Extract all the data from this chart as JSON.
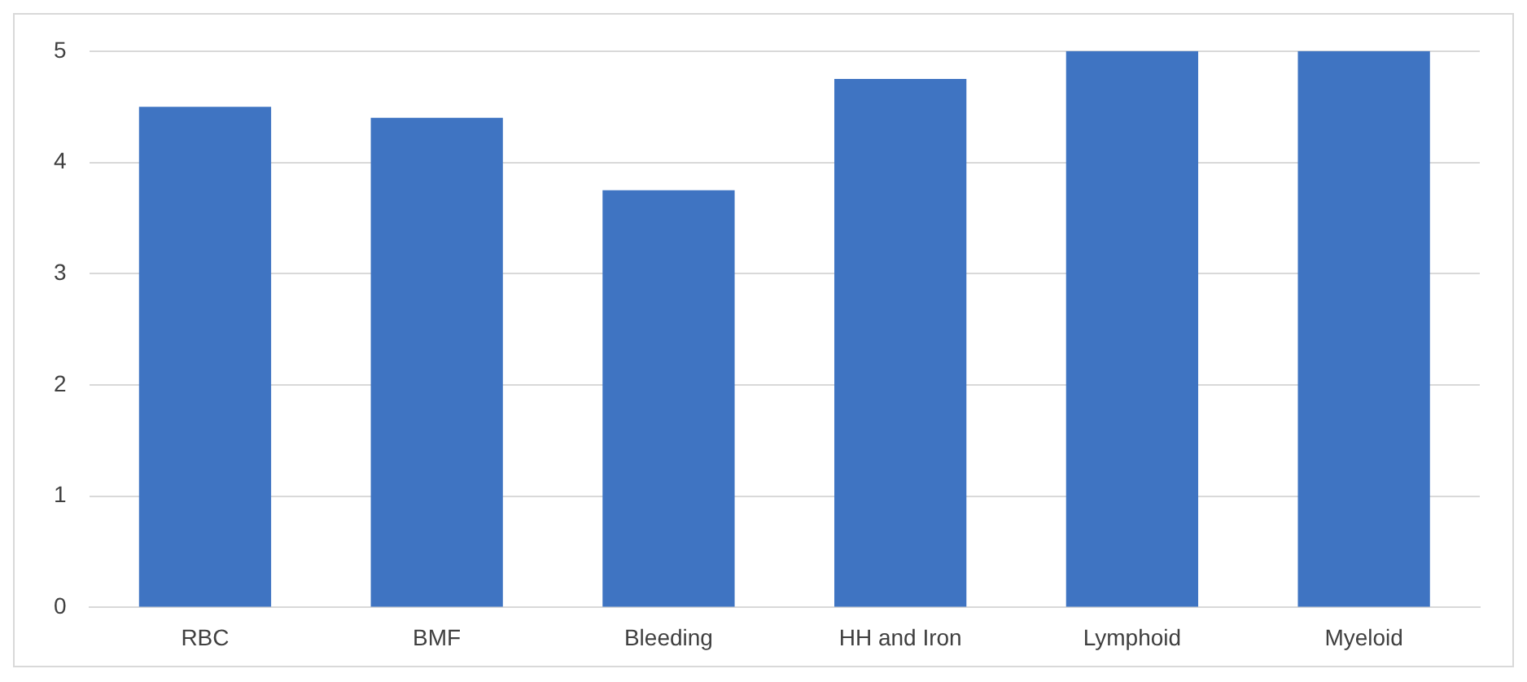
{
  "chart_data": {
    "type": "bar",
    "categories": [
      "RBC",
      "BMF",
      "Bleeding",
      "HH and Iron",
      "Lymphoid",
      "Myeloid"
    ],
    "values": [
      4.5,
      4.4,
      3.75,
      4.75,
      5,
      5
    ],
    "color": "#3f74c2",
    "ylim": [
      0,
      5
    ],
    "yticks": [
      0,
      1,
      2,
      3,
      4,
      5
    ],
    "grid": "y",
    "legend": false
  }
}
